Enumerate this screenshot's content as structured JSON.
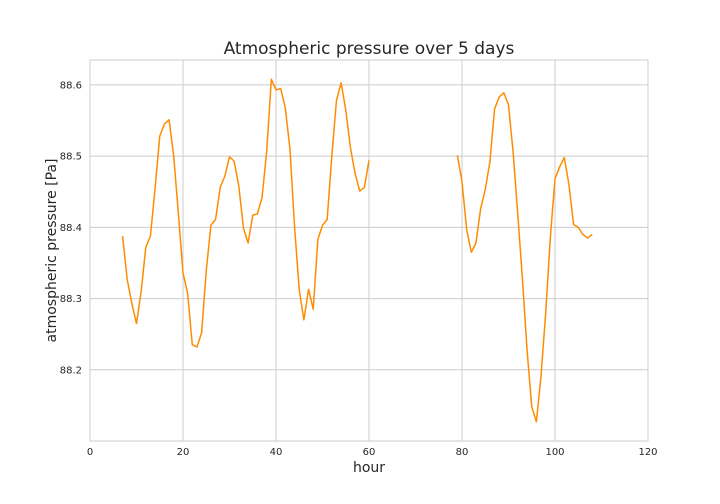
{
  "chart_data": {
    "type": "line",
    "title": "Atmospheric pressure over 5 days",
    "xlabel": "hour",
    "ylabel": "atmospheric pressure [Pa]",
    "xlim": [
      0,
      120
    ],
    "ylim": [
      88.1,
      88.635
    ],
    "xticks": [
      0,
      20,
      40,
      60,
      80,
      100,
      120
    ],
    "yticks": [
      88.2,
      88.3,
      88.4,
      88.5,
      88.6
    ],
    "ytick_labels": [
      "88.2",
      "88.3",
      "88.4",
      "88.5",
      "88.6"
    ],
    "grid": true,
    "colors": {
      "line": "#ff8c00",
      "grid": "#cccccc",
      "background": "#ffffff"
    },
    "series": [
      {
        "segments": [
          {
            "x": [
              7,
              8,
              9,
              10,
              11,
              12,
              13,
              14,
              15,
              16,
              17,
              18,
              19,
              20,
              21,
              22,
              23,
              24,
              25,
              26,
              27,
              28,
              29,
              30,
              31,
              32,
              33,
              34,
              35,
              36,
              37,
              38,
              39,
              40,
              41,
              42,
              43,
              44,
              45,
              46,
              47,
              48,
              49,
              50,
              51,
              52,
              53,
              54,
              55,
              56,
              57,
              58,
              59,
              60
            ],
            "y": [
              88.388,
              88.327,
              88.293,
              88.265,
              88.31,
              88.372,
              88.388,
              88.455,
              88.528,
              88.545,
              88.551,
              88.5,
              88.42,
              88.336,
              88.307,
              88.235,
              88.232,
              88.252,
              88.339,
              88.403,
              88.411,
              88.456,
              88.472,
              88.499,
              88.493,
              88.458,
              88.399,
              88.378,
              88.417,
              88.419,
              88.442,
              88.507,
              88.608,
              88.593,
              88.595,
              88.568,
              88.51,
              88.4,
              88.312,
              88.27,
              88.313,
              88.285,
              88.383,
              88.403,
              88.411,
              88.5,
              88.578,
              88.603,
              88.565,
              88.512,
              88.476,
              88.451,
              88.456,
              88.494
            ]
          },
          {
            "x": [
              79,
              80,
              81,
              82,
              83,
              84,
              85,
              86,
              87,
              88,
              89,
              90,
              91,
              92,
              93,
              94,
              95,
              96,
              97,
              98,
              99,
              100,
              101,
              102,
              103,
              104,
              105,
              106,
              107,
              108
            ],
            "y": [
              88.501,
              88.464,
              88.397,
              88.365,
              88.378,
              88.426,
              88.453,
              88.492,
              88.566,
              88.583,
              88.589,
              88.572,
              88.505,
              88.418,
              88.327,
              88.227,
              88.148,
              88.127,
              88.192,
              88.28,
              88.386,
              88.468,
              88.485,
              88.498,
              88.46,
              88.404,
              88.4,
              88.39,
              88.385,
              88.39
            ]
          }
        ]
      }
    ]
  }
}
